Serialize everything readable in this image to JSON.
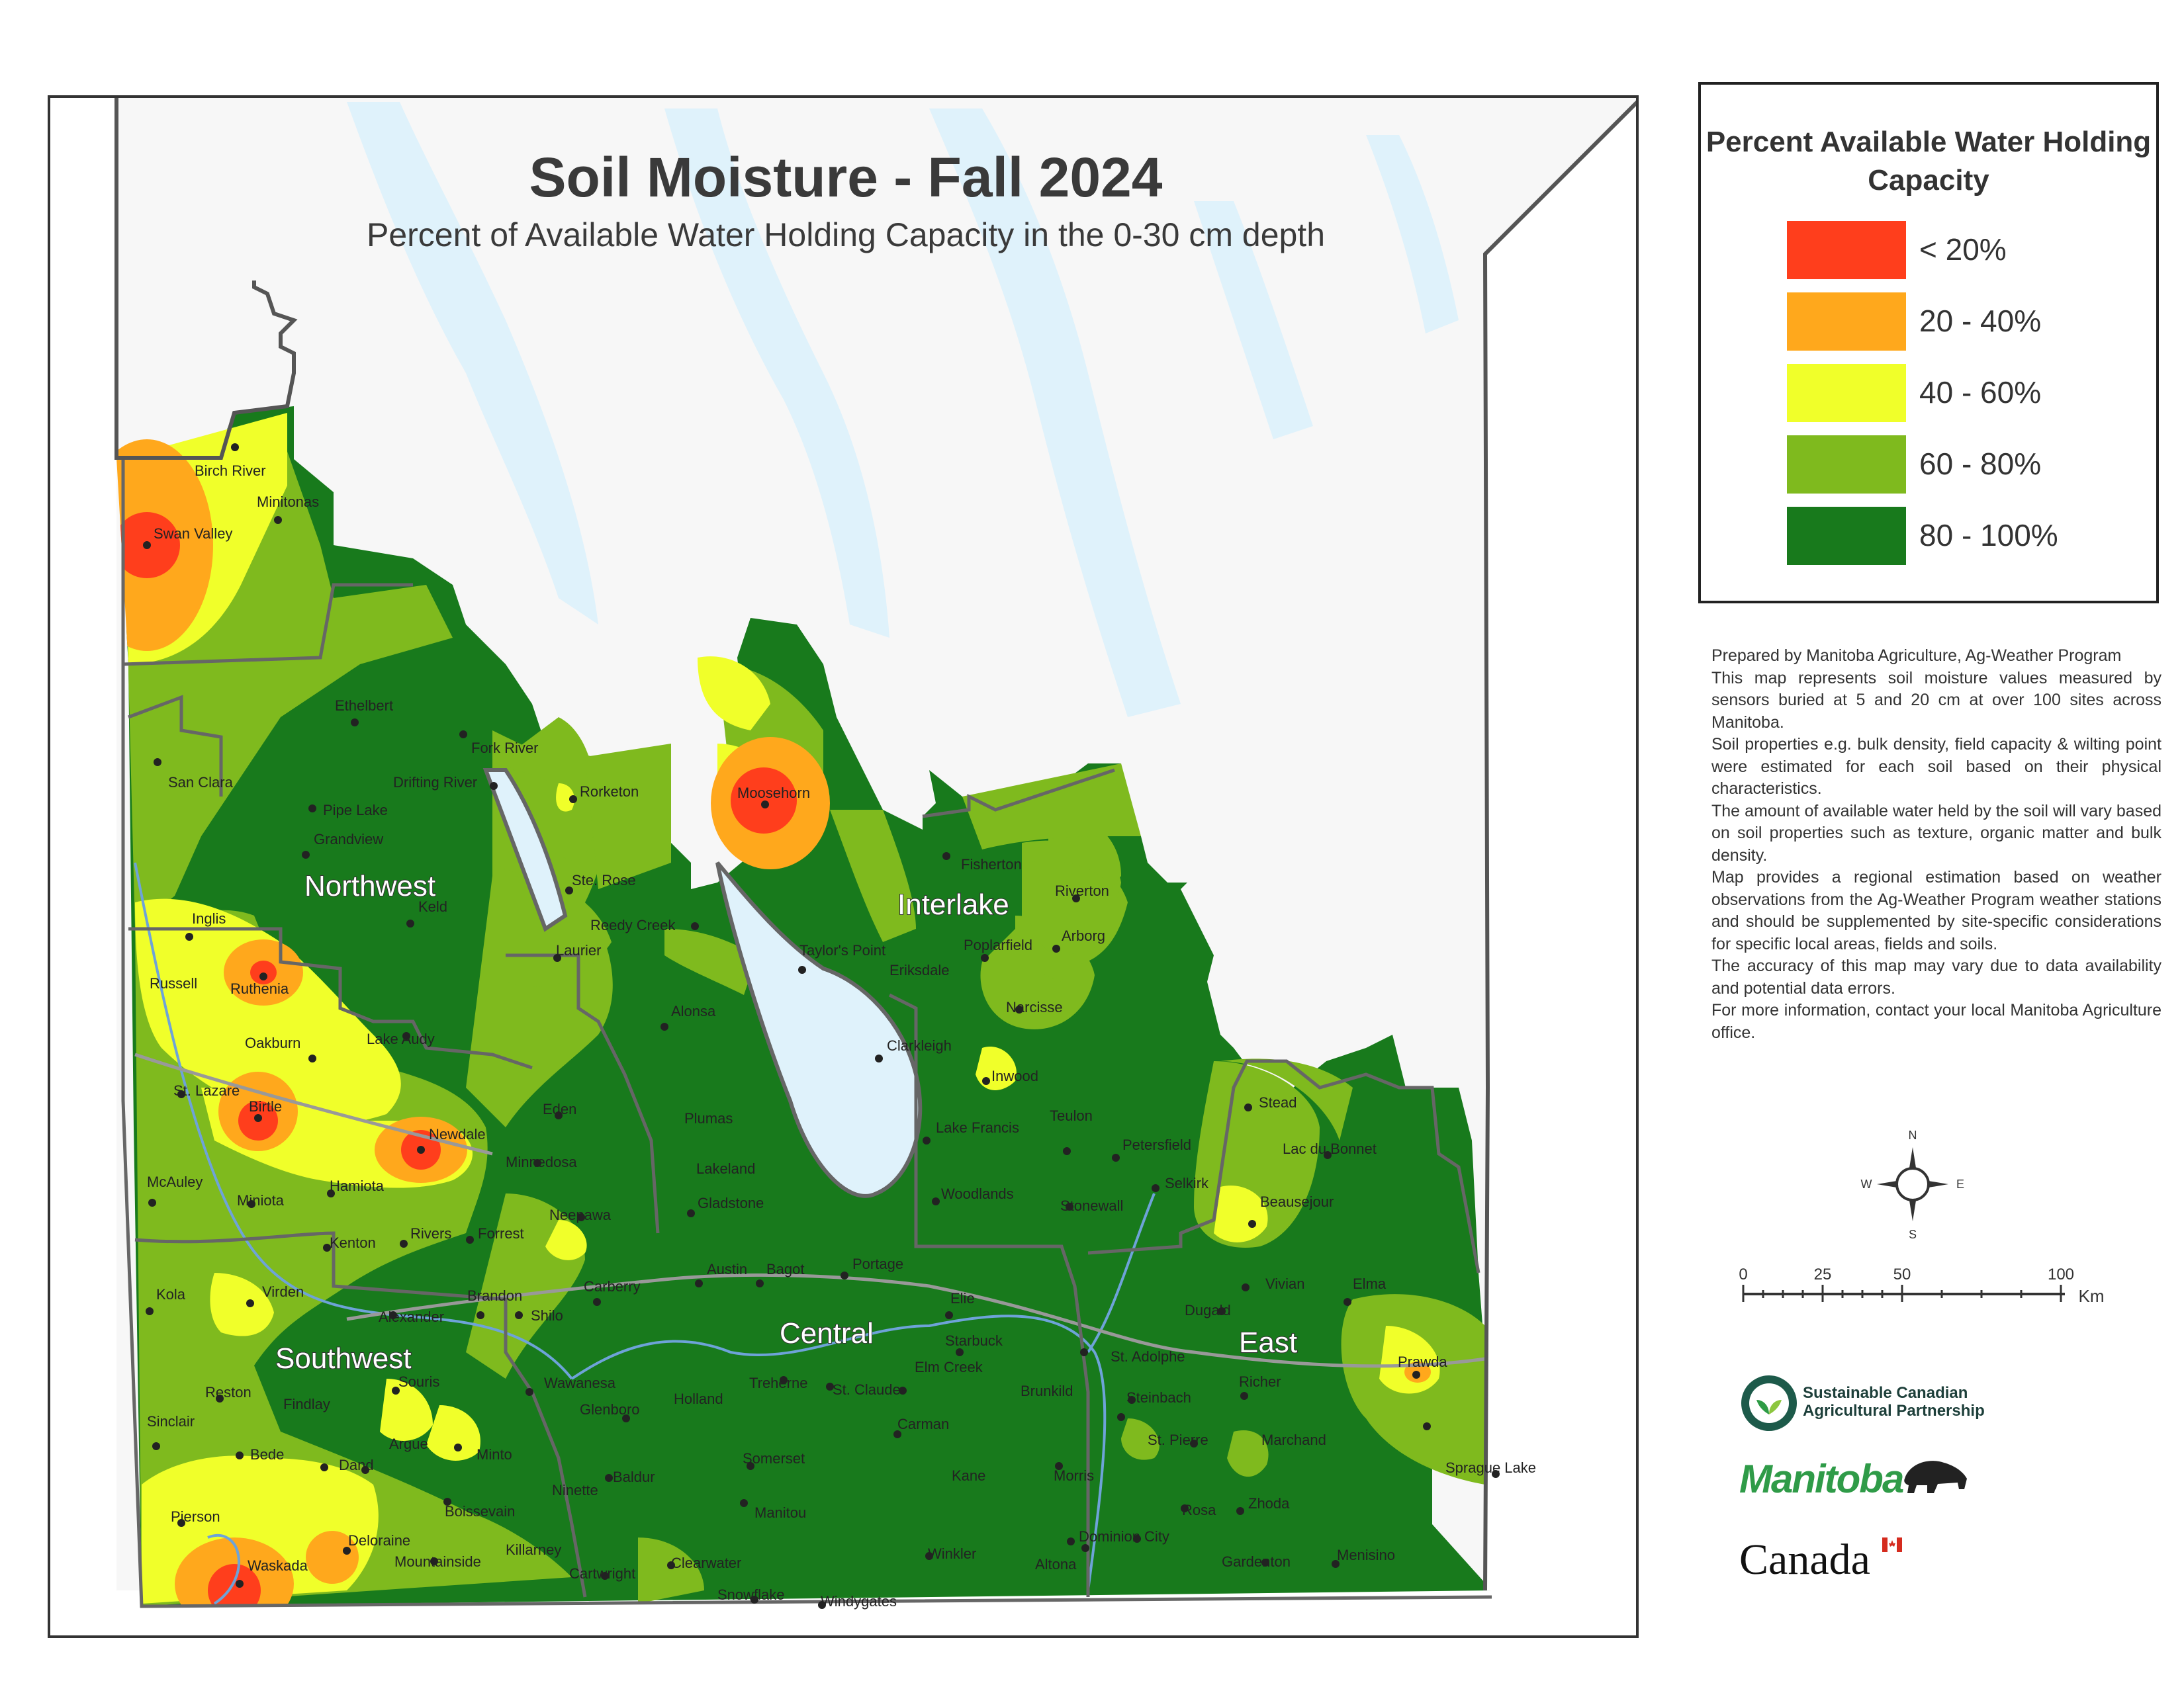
{
  "title": "Soil Moisture - Fall 2024",
  "subtitle": "Percent of Available Water Holding Capacity in the 0-30 cm depth",
  "legend": {
    "title": "Percent Available Water Holding Capacity",
    "items": [
      {
        "label": "< 20%",
        "color": "#ff3e1c"
      },
      {
        "label": "20 - 40%",
        "color": "#ffa81c"
      },
      {
        "label": "40 - 60%",
        "color": "#f0ff2a"
      },
      {
        "label": "60 - 80%",
        "color": "#7fba1e"
      },
      {
        "label": "80 - 100%",
        "color": "#187a1c"
      }
    ]
  },
  "notes": [
    "Prepared by Manitoba Agriculture, Ag-Weather Program",
    "This map represents soil moisture values measured by sensors buried at 5 and 20 cm at over 100 sites across Manitoba.",
    "Soil properties e.g. bulk density, field capacity & wilting point were estimated for each soil based on their physical characteristics.",
    "The amount of available water held by the soil will vary based on soil properties such as texture, organic matter and bulk density.",
    "Map provides a regional estimation based on weather observations from the Ag-Weather Program weather stations and should be supplemented by site-specific considerations for specific local areas, fields and soils.",
    "The accuracy of this map may vary due to data availability and potential data errors.",
    "For more information, contact your local Manitoba Agriculture office."
  ],
  "compass": {
    "n": "N",
    "s": "S",
    "e": "E",
    "w": "W"
  },
  "scale": {
    "ticks": [
      "0",
      "25",
      "50",
      "100"
    ],
    "unit": "Km"
  },
  "logos": {
    "scap": "Sustainable Canadian Agricultural Partnership",
    "manitoba": "Manitoba",
    "canada": "Canada"
  },
  "regions": [
    "Northwest",
    "Interlake",
    "Southwest",
    "Central",
    "East"
  ],
  "towns": [
    "Birch River",
    "Minitonas",
    "Swan Valley",
    "Ethelbert",
    "Fork River",
    "San Clara",
    "Drifting River",
    "Pipe Lake",
    "Rorketon",
    "Moosehorn",
    "Grandview",
    "Fisherton",
    "Riverton",
    "Ste. Rose",
    "Keld",
    "Reedy Creek",
    "Arborg",
    "Inglis",
    "Laurier",
    "Taylor's Point",
    "Poplarfield",
    "Eriksdale",
    "Russell",
    "Ruthenia",
    "Alonsa",
    "Narcisse",
    "Oakburn",
    "Lake Audy",
    "Clarkleigh",
    "St. Lazare",
    "Birtle",
    "Eden",
    "Plumas",
    "Inwood",
    "Stead",
    "Newdale",
    "Lake Francis",
    "Teulon",
    "Minnedosa",
    "Lakeland",
    "Petersfield",
    "Lac du Bonnet",
    "McAuley",
    "Hamiota",
    "Miniota",
    "Gladstone",
    "Woodlands",
    "Stonewall",
    "Selkirk",
    "Beausejour",
    "Neepawa",
    "Rivers",
    "Forrest",
    "Kenton",
    "Austin",
    "Bagot",
    "Portage",
    "Carberry",
    "Vivian",
    "Elma",
    "Kola",
    "Virden",
    "Brandon",
    "Alexander",
    "Shilo",
    "Elie",
    "Dugald",
    "Starbuck",
    "St. Adolphe",
    "Elm Creek",
    "Prawda",
    "Souris",
    "Wawanesa",
    "Treherne",
    "St. Claude",
    "Reston",
    "Findlay",
    "Holland",
    "Glenboro",
    "Brunkild",
    "Steinbach",
    "Richer",
    "Sinclair",
    "Carman",
    "St. Pierre",
    "Marchand",
    "Argue",
    "Minto",
    "Bede",
    "Dand",
    "Somerset",
    "Morris",
    "Kane",
    "Sprague Lake",
    "Baldur",
    "Ninette",
    "Boissevain",
    "Manitou",
    "Rosa",
    "Zhoda",
    "Pierson",
    "Deloraine",
    "Killarney",
    "Winkler",
    "Dominion City",
    "Waskada",
    "Mountainside",
    "Clearwater",
    "Cartwright",
    "Altona",
    "Gardenton",
    "Menisino",
    "Snowflake",
    "Windygates"
  ]
}
